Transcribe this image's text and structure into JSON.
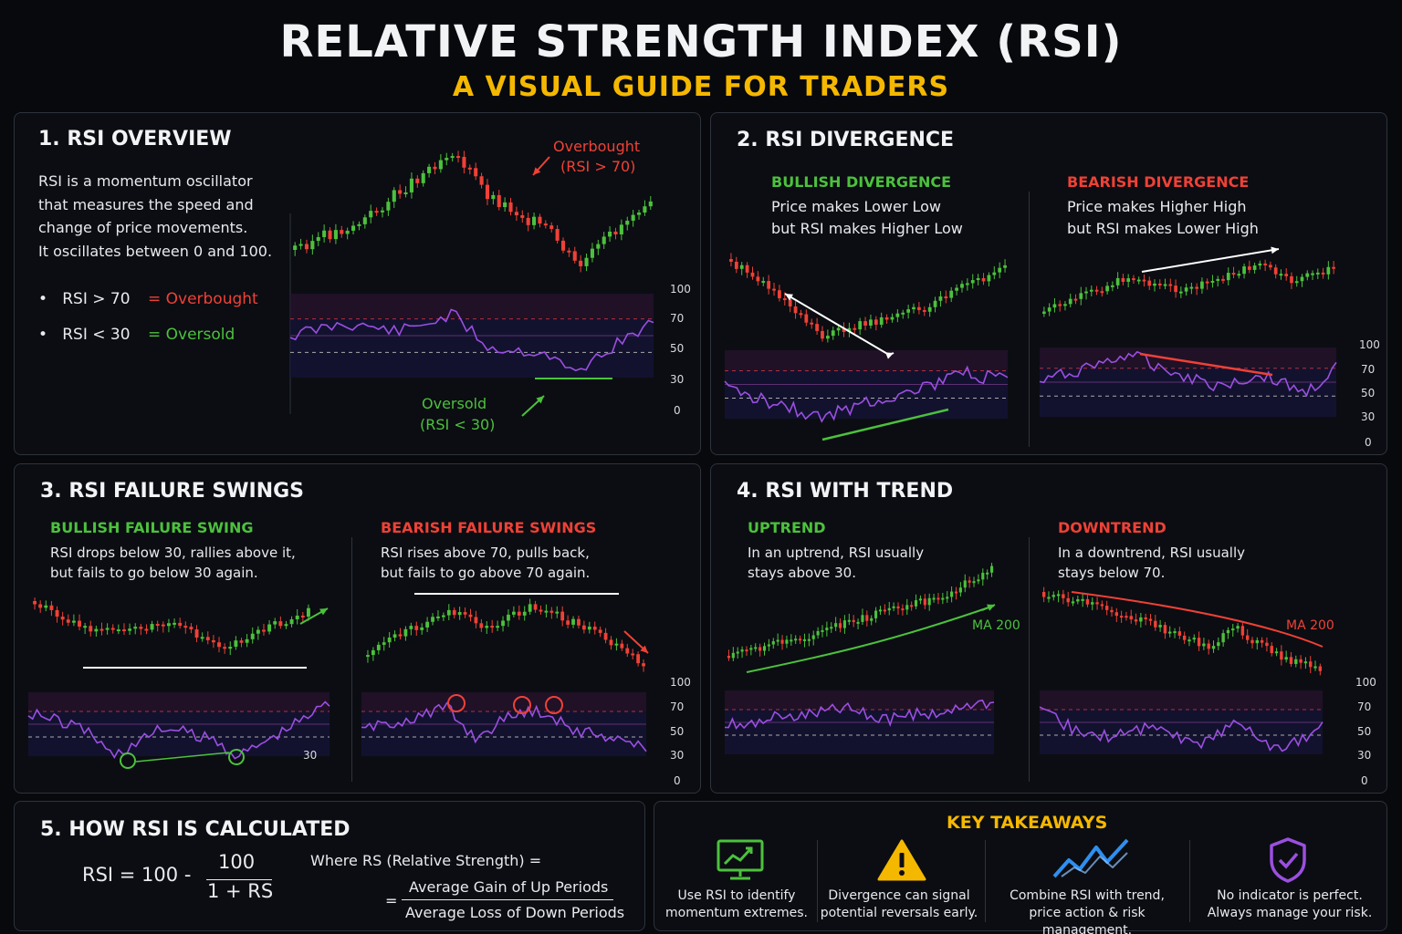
{
  "header": {
    "title": "RELATIVE STRENGTH INDEX (RSI)",
    "subtitle": "A VISUAL GUIDE FOR TRADERS"
  },
  "colors": {
    "bull": "#4cc13d",
    "bear": "#ef4136",
    "rsi_line": "#9b4fe0",
    "accent": "#f5b800",
    "panel_border": "#2e333c"
  },
  "overview": {
    "title": "1. RSI OVERVIEW",
    "lines": [
      "RSI is a momentum oscillator",
      "that measures the speed and",
      "change of price movements.",
      "It oscillates between 0 and 100."
    ],
    "bullet1_key": "RSI > 70",
    "bullet1_eq": "=",
    "bullet1_val": "Overbought",
    "bullet2_key": "RSI < 30",
    "bullet2_eq": "=",
    "bullet2_val": "Oversold",
    "overbought_label": "Overbought",
    "overbought_sub": "(RSI > 70)",
    "oversold_label": "Oversold",
    "oversold_sub": "(RSI < 30)",
    "axis_ticks": [
      "100",
      "70",
      "50",
      "30",
      "0"
    ]
  },
  "divergence": {
    "title": "2. RSI DIVERGENCE",
    "bullish_title": "BULLISH DIVERGENCE",
    "bullish_lines": [
      "Price makes Lower Low",
      "but RSI makes Higher Low"
    ],
    "bearish_title": "BEARISH DIVERGENCE",
    "bearish_lines": [
      "Price makes Higher High",
      "but RSI makes Lower High"
    ],
    "axis_ticks": [
      "100",
      "70",
      "50",
      "30",
      "0"
    ]
  },
  "failure": {
    "title": "3. RSI FAILURE SWINGS",
    "bullish_title": "BULLISH FAILURE SWING",
    "bullish_lines": [
      "RSI drops below 30, rallies above it,",
      "but fails to go below 30 again."
    ],
    "bearish_title": "BEARISH FAILURE SWINGS",
    "bearish_lines": [
      "RSI rises above 70, pulls back,",
      "but fails to go above 70 again."
    ],
    "left_tick": "30",
    "axis_ticks": [
      "100",
      "70",
      "50",
      "30",
      "0"
    ]
  },
  "trend": {
    "title": "4. RSI WITH TREND",
    "up_title": "UPTREND",
    "up_lines": [
      "In an uptrend, RSI usually",
      "stays above 30."
    ],
    "down_title": "DOWNTREND",
    "down_lines": [
      "In a downtrend, RSI usually",
      "stays below 70."
    ],
    "ma_label_up": "MA 200",
    "ma_label_down": "MA 200",
    "axis_ticks": [
      "100",
      "70",
      "50",
      "30",
      "0"
    ]
  },
  "calc": {
    "title": "5. HOW RSI IS CALCULATED",
    "lhs": "RSI = 100 -",
    "num": "100",
    "den": "1 + RS",
    "where": "Where RS  (Relative Strength) =",
    "eq": "=",
    "gain": "Average Gain of Up Periods",
    "loss": "Average Loss of Down Periods"
  },
  "takeaways": {
    "title": "KEY TAKEAWAYS",
    "items": [
      {
        "icon": "monitor-chart-icon",
        "l1": "Use RSI to identify",
        "l2": "momentum extremes."
      },
      {
        "icon": "warning-icon",
        "l1": "Divergence can signal",
        "l2": "potential reversals early."
      },
      {
        "icon": "trend-lines-icon",
        "l1": "Combine RSI with trend,",
        "l2": "price action & risk management."
      },
      {
        "icon": "shield-check-icon",
        "l1": "No indicator is perfect.",
        "l2": "Always manage your risk."
      }
    ]
  }
}
